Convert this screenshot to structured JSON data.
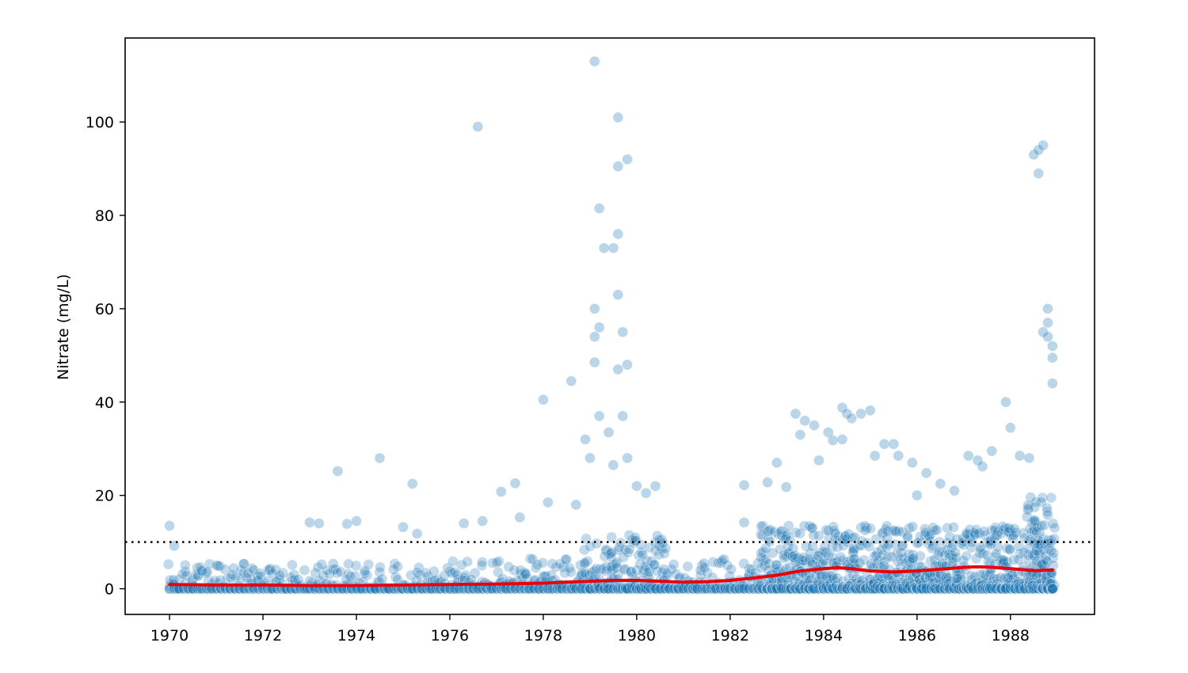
{
  "chart_data": {
    "type": "scatter",
    "title": "",
    "xlabel": "",
    "ylabel": "Nitrate (mg/L)",
    "xlim": [
      1969.05,
      1989.8
    ],
    "ylim": [
      -5.5,
      118
    ],
    "x_ticks": [
      "1970",
      "1972",
      "1974",
      "1976",
      "1978",
      "1980",
      "1982",
      "1984",
      "1986",
      "1988"
    ],
    "y_ticks": [
      "0",
      "20",
      "40",
      "60",
      "80",
      "100"
    ],
    "grid": false,
    "legend": "none",
    "colors": {
      "points": "#1f77b4",
      "trend": "#e8000b",
      "threshold": "#000000"
    },
    "threshold": {
      "y": 10,
      "style": "dotted"
    },
    "trend": {
      "x": [
        1970.0,
        1971.0,
        1972.0,
        1973.0,
        1974.0,
        1975.0,
        1976.0,
        1977.0,
        1978.0,
        1979.0,
        1979.5,
        1980.0,
        1980.5,
        1981.0,
        1981.5,
        1982.0,
        1982.5,
        1983.0,
        1983.5,
        1984.0,
        1984.3,
        1984.6,
        1985.0,
        1985.5,
        1986.0,
        1986.5,
        1987.0,
        1987.3,
        1987.6,
        1988.0,
        1988.5,
        1988.9
      ],
      "y": [
        0.9,
        0.8,
        0.8,
        0.7,
        0.7,
        0.8,
        0.9,
        1.0,
        1.2,
        1.6,
        1.8,
        1.8,
        1.6,
        1.4,
        1.5,
        1.8,
        2.3,
        2.9,
        3.8,
        4.3,
        4.5,
        4.3,
        3.8,
        3.6,
        3.8,
        4.2,
        4.6,
        4.7,
        4.6,
        4.3,
        3.9,
        4.0
      ]
    },
    "outliers": {
      "x": [
        1970.0,
        1970.1,
        1973.0,
        1973.2,
        1973.6,
        1973.8,
        1974.0,
        1974.5,
        1975.0,
        1975.2,
        1975.3,
        1976.3,
        1976.6,
        1976.7,
        1977.1,
        1977.4,
        1977.5,
        1978.0,
        1978.1,
        1978.6,
        1978.7,
        1978.9,
        1979.0,
        1979.1,
        1979.1,
        1979.1,
        1979.1,
        1979.2,
        1979.2,
        1979.2,
        1979.3,
        1979.4,
        1979.5,
        1979.5,
        1979.6,
        1979.6,
        1979.6,
        1979.6,
        1979.6,
        1979.7,
        1979.7,
        1979.8,
        1979.8,
        1979.8,
        1980.0,
        1980.2,
        1980.4,
        1982.3,
        1982.3,
        1982.8,
        1983.0,
        1983.2,
        1983.4,
        1983.5,
        1983.6,
        1983.8,
        1983.9,
        1984.1,
        1984.2,
        1984.4,
        1984.4,
        1984.5,
        1984.6,
        1984.8,
        1985.0,
        1985.1,
        1985.3,
        1985.5,
        1985.6,
        1985.9,
        1986.0,
        1986.2,
        1986.5,
        1986.8,
        1987.1,
        1987.3,
        1987.4,
        1987.6,
        1987.9,
        1988.0,
        1988.2,
        1988.4,
        1988.5,
        1988.6,
        1988.6,
        1988.7,
        1988.7,
        1988.8,
        1988.8,
        1988.8,
        1988.9,
        1988.9,
        1988.9
      ],
      "y": [
        13.5,
        9.2,
        14.2,
        14.0,
        25.2,
        13.9,
        14.5,
        28.0,
        13.2,
        22.5,
        11.8,
        14.0,
        99.0,
        14.5,
        20.8,
        22.6,
        15.3,
        40.5,
        18.5,
        44.5,
        18.0,
        32.0,
        28.0,
        113.0,
        60.0,
        54.0,
        48.5,
        37.0,
        56.0,
        81.5,
        73.0,
        33.5,
        73.0,
        26.5,
        101.0,
        90.5,
        76.0,
        63.0,
        47.0,
        55.0,
        37.0,
        92.0,
        48.0,
        28.0,
        22.0,
        20.5,
        22.0,
        22.2,
        14.2,
        22.8,
        27.0,
        21.8,
        37.5,
        33.0,
        36.0,
        35.0,
        27.5,
        33.5,
        31.8,
        32.0,
        38.8,
        37.5,
        36.5,
        37.5,
        38.2,
        28.5,
        31.0,
        31.0,
        28.5,
        27.0,
        20.0,
        24.8,
        22.5,
        21.0,
        28.5,
        27.5,
        26.2,
        29.5,
        40.0,
        34.5,
        28.5,
        28.0,
        93.0,
        89.0,
        94.0,
        95.0,
        55.0,
        60.0,
        57.0,
        54.0,
        52.0,
        49.5,
        44.0
      ]
    }
  }
}
